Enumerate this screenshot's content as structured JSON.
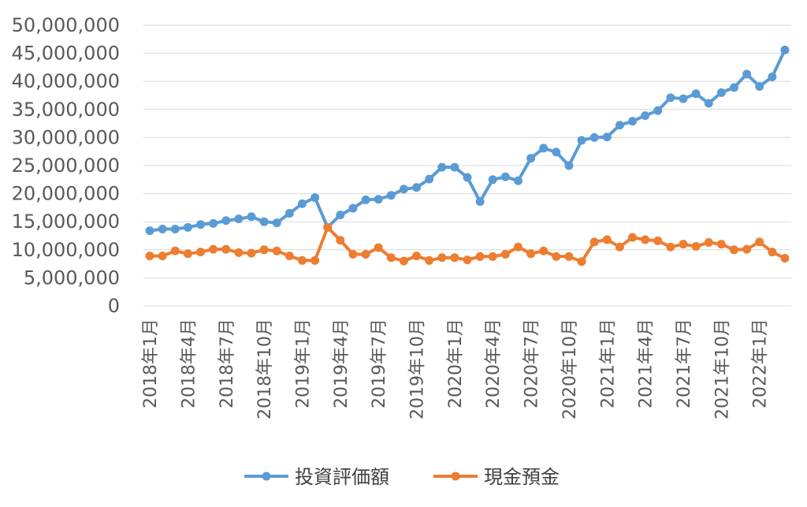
{
  "chart_data": {
    "type": "line",
    "title": "",
    "xlabel": "",
    "ylabel": "",
    "ylim": [
      0,
      50000000
    ],
    "yticks": [
      0,
      5000000,
      10000000,
      15000000,
      20000000,
      25000000,
      30000000,
      35000000,
      40000000,
      45000000,
      50000000
    ],
    "ytick_labels": [
      "0",
      "5,000,000",
      "10,000,000",
      "15,000,000",
      "20,000,000",
      "25,000,000",
      "30,000,000",
      "35,000,000",
      "40,000,000",
      "45,000,000",
      "50,000,000"
    ],
    "x_labels_shown": [
      {
        "index": 0,
        "label": "2018年1月"
      },
      {
        "index": 3,
        "label": "2018年4月"
      },
      {
        "index": 6,
        "label": "2018年7月"
      },
      {
        "index": 9,
        "label": "2018年10月"
      },
      {
        "index": 12,
        "label": "2019年1月"
      },
      {
        "index": 15,
        "label": "2019年4月"
      },
      {
        "index": 18,
        "label": "2019年7月"
      },
      {
        "index": 21,
        "label": "2019年10月"
      },
      {
        "index": 24,
        "label": "2020年1月"
      },
      {
        "index": 27,
        "label": "2020年4月"
      },
      {
        "index": 30,
        "label": "2020年7月"
      },
      {
        "index": 33,
        "label": "2020年10月"
      },
      {
        "index": 36,
        "label": "2021年1月"
      },
      {
        "index": 39,
        "label": "2021年4月"
      },
      {
        "index": 42,
        "label": "2021年7月"
      },
      {
        "index": 45,
        "label": "2021年10月"
      },
      {
        "index": 48,
        "label": "2022年1月"
      }
    ],
    "grid": true,
    "legend_position": "bottom",
    "series": [
      {
        "name": "投資評価額",
        "color": "#5b9bd5",
        "values": [
          13400000,
          13700000,
          13700000,
          14000000,
          14500000,
          14700000,
          15200000,
          15500000,
          15900000,
          15000000,
          14800000,
          16500000,
          18200000,
          19300000,
          14000000,
          16200000,
          17400000,
          18900000,
          19000000,
          19700000,
          20800000,
          21100000,
          22600000,
          24700000,
          24700000,
          22900000,
          18600000,
          22500000,
          23000000,
          22300000,
          26300000,
          28100000,
          27400000,
          25000000,
          29500000,
          30000000,
          30100000,
          32200000,
          32900000,
          33900000,
          34800000,
          37100000,
          36900000,
          37800000,
          36100000,
          38000000,
          38900000,
          41300000,
          39100000,
          40800000,
          45600000
        ]
      },
      {
        "name": "現金預金",
        "color": "#ed7d31",
        "values": [
          8900000,
          8900000,
          9800000,
          9300000,
          9600000,
          10100000,
          10100000,
          9500000,
          9400000,
          10000000,
          9800000,
          8900000,
          8100000,
          8100000,
          14000000,
          11700000,
          9200000,
          9200000,
          10400000,
          8600000,
          8000000,
          8900000,
          8100000,
          8600000,
          8600000,
          8200000,
          8800000,
          8800000,
          9200000,
          10500000,
          9300000,
          9800000,
          8800000,
          8800000,
          7900000,
          11400000,
          11800000,
          10500000,
          12200000,
          11800000,
          11600000,
          10500000,
          11000000,
          10600000,
          11300000,
          11000000,
          10000000,
          10100000,
          11400000,
          9600000,
          8500000
        ]
      }
    ]
  }
}
